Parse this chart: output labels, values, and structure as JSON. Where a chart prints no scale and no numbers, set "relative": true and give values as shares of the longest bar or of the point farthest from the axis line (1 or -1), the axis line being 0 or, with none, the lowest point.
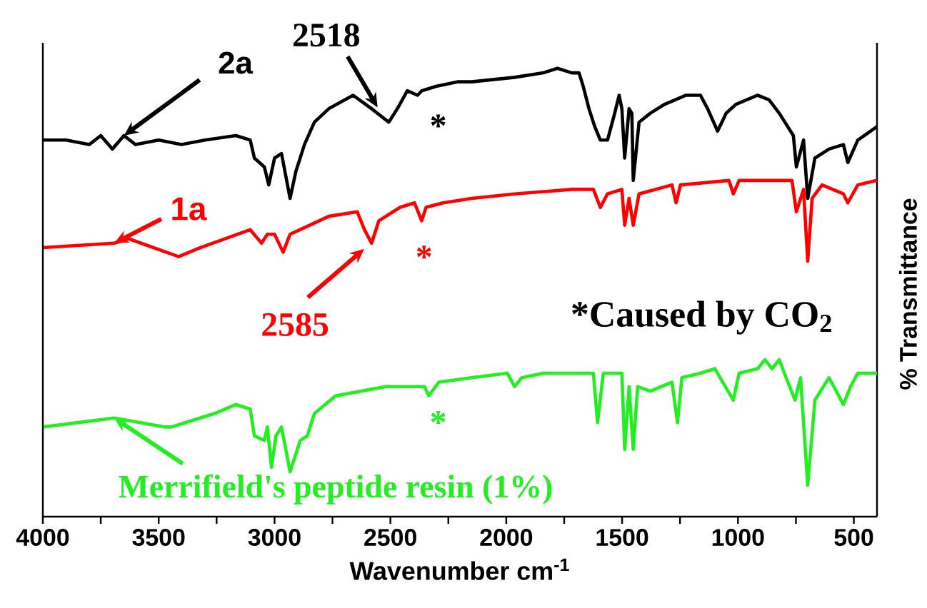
{
  "chart_data": {
    "type": "line",
    "relative": true,
    "xlabel": "Wavenumber cm$^{-1}$",
    "ylabel": "% Transmittance",
    "xlim": [
      4000,
      400
    ],
    "xticks": [
      4000,
      {
        "value": 3750,
        "label": null
      },
      3500,
      {
        "value": 3250,
        "label": null
      },
      3000,
      {
        "value": 2750,
        "label": null
      },
      2500,
      {
        "value": 2250,
        "label": null
      },
      2000,
      {
        "value": 1750,
        "label": null
      },
      1500,
      {
        "value": 1250,
        "label": null
      },
      1000,
      {
        "value": 750,
        "label": null
      },
      500
    ],
    "marker": "none",
    "line_style": "solid",
    "series": [
      {
        "color": "#000000",
        "x": [
          4000,
          3900,
          3800,
          3750,
          3700,
          3650,
          3600,
          3500,
          3402,
          3300,
          3167,
          3105,
          3087,
          3044,
          3025,
          3000,
          2970,
          2933,
          2908,
          2871,
          2828,
          2766,
          2661,
          2581,
          2507,
          2470,
          2427,
          2383,
          2365,
          2303,
          2211,
          2149,
          1964,
          1840,
          1779,
          1717,
          1686,
          1668,
          1643,
          1618,
          1594,
          1563,
          1532,
          1513,
          1501,
          1489,
          1470,
          1458,
          1452,
          1427,
          1378,
          1316,
          1224,
          1162,
          1131,
          1088,
          1051,
          1008,
          915,
          866,
          822,
          761,
          748,
          717,
          699,
          668,
          607,
          545,
          526,
          483,
          400
        ],
        "values": [
          0.84,
          0.84,
          0.83,
          0.85,
          0.82,
          0.85,
          0.83,
          0.84,
          0.83,
          0.84,
          0.85,
          0.84,
          0.8,
          0.78,
          0.74,
          0.8,
          0.81,
          0.71,
          0.77,
          0.83,
          0.88,
          0.91,
          0.94,
          0.91,
          0.88,
          0.91,
          0.95,
          0.94,
          0.95,
          0.96,
          0.97,
          0.97,
          0.98,
          0.99,
          1.0,
          0.99,
          0.99,
          0.96,
          0.91,
          0.87,
          0.84,
          0.84,
          0.9,
          0.94,
          0.91,
          0.8,
          0.91,
          0.9,
          0.75,
          0.88,
          0.9,
          0.92,
          0.94,
          0.94,
          0.91,
          0.86,
          0.9,
          0.92,
          0.94,
          0.93,
          0.9,
          0.85,
          0.78,
          0.84,
          0.71,
          0.8,
          0.82,
          0.83,
          0.79,
          0.84,
          0.87
        ]
      },
      {
        "color": "#ff0000",
        "x": [
          4000,
          3692,
          3630,
          3414,
          3321,
          3105,
          3056,
          3031,
          3000,
          2963,
          2933,
          2890,
          2766,
          2643,
          2612,
          2581,
          2550,
          2458,
          2396,
          2365,
          2346,
          2272,
          2149,
          1964,
          1717,
          1624,
          1594,
          1563,
          1501,
          1489,
          1470,
          1452,
          1427,
          1285,
          1267,
          1248,
          1039,
          1020,
          995,
          767,
          748,
          717,
          699,
          680,
          637,
          545,
          526,
          483,
          400
        ],
        "values": [
          0.6,
          0.61,
          0.62,
          0.58,
          0.6,
          0.64,
          0.61,
          0.63,
          0.63,
          0.59,
          0.63,
          0.64,
          0.67,
          0.68,
          0.64,
          0.61,
          0.66,
          0.69,
          0.7,
          0.66,
          0.69,
          0.7,
          0.71,
          0.72,
          0.73,
          0.73,
          0.69,
          0.72,
          0.73,
          0.65,
          0.71,
          0.65,
          0.72,
          0.74,
          0.7,
          0.74,
          0.75,
          0.72,
          0.75,
          0.75,
          0.68,
          0.73,
          0.57,
          0.71,
          0.74,
          0.72,
          0.7,
          0.74,
          0.75
        ]
      },
      {
        "color": "#22ee22",
        "x": [
          4000,
          3692,
          3476,
          3445,
          3260,
          3167,
          3105,
          3087,
          3044,
          3031,
          3013,
          2994,
          2970,
          2933,
          2889,
          2859,
          2828,
          2735,
          2519,
          2353,
          2334,
          2291,
          2149,
          1995,
          1964,
          1933,
          1840,
          1717,
          1624,
          1606,
          1581,
          1501,
          1489,
          1470,
          1452,
          1433,
          1378,
          1285,
          1261,
          1242,
          1162,
          1100,
          1020,
          995,
          915,
          884,
          853,
          822,
          792,
          754,
          730,
          699,
          668,
          607,
          545,
          514,
          483,
          400
        ],
        "values": [
          0.2,
          0.22,
          0.2,
          0.2,
          0.23,
          0.25,
          0.24,
          0.18,
          0.17,
          0.2,
          0.11,
          0.18,
          0.2,
          0.1,
          0.17,
          0.18,
          0.23,
          0.27,
          0.29,
          0.29,
          0.27,
          0.3,
          0.31,
          0.32,
          0.29,
          0.31,
          0.32,
          0.32,
          0.32,
          0.21,
          0.32,
          0.32,
          0.15,
          0.29,
          0.15,
          0.29,
          0.28,
          0.3,
          0.21,
          0.31,
          0.32,
          0.33,
          0.26,
          0.32,
          0.33,
          0.35,
          0.33,
          0.35,
          0.31,
          0.26,
          0.31,
          0.07,
          0.26,
          0.31,
          0.25,
          0.29,
          0.32,
          0.32
        ]
      }
    ],
    "annotations": [
      {
        "text": "2a",
        "x": 3650,
        "y": 0.85
      },
      {
        "text": "2518",
        "x": 2518,
        "y": 0.88
      },
      "*",
      {
        "text": "1a",
        "x": 3692,
        "y": 0.61
      },
      {
        "text": "2585",
        "x": 2585,
        "y": 0.61
      },
      "*",
      {
        "text": "Merrifield's peptide resin (1%)",
        "x": 3692,
        "y": 0.22
      },
      "*",
      "*Caused by CO$_{2}$"
    ]
  }
}
